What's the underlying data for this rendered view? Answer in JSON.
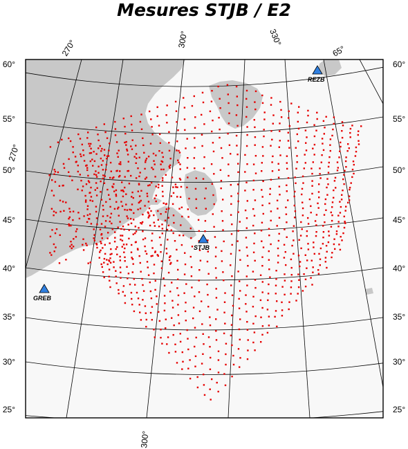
{
  "title": "Mesures STJB / E2",
  "colors": {
    "land": "#c8c8c8",
    "ocean": "#f8f8f8",
    "graticule": "#000000",
    "measurement": "#e60000",
    "station_fill": "#2f7fe0"
  },
  "lat_labels": [
    "60°",
    "55°",
    "50°",
    "45°",
    "40°",
    "35°",
    "30°",
    "25°"
  ],
  "lon_labels_top": [
    "270°",
    "300°",
    "330°",
    "65°"
  ],
  "lon_labels_bottom": [
    "300°"
  ],
  "lon_labels_left": [
    "270°"
  ],
  "stations": [
    {
      "code": "REZB",
      "icon": "triangle-icon"
    },
    {
      "code": "STJB",
      "icon": "triangle-icon"
    },
    {
      "code": "GREB",
      "icon": "triangle-icon"
    }
  ],
  "measurement_marker": "red-dot-icon"
}
